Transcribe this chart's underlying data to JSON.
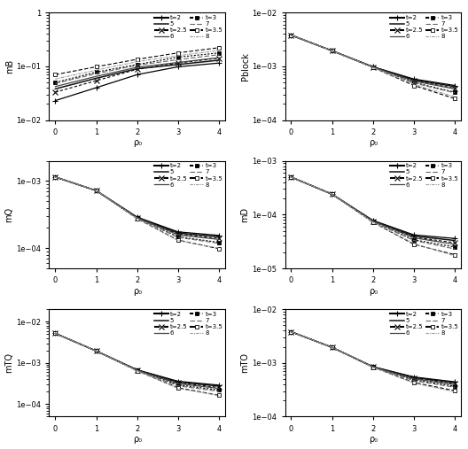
{
  "xlabel": "ρ₀",
  "x_values": [
    0,
    1,
    2,
    3,
    4
  ],
  "subplots": [
    {
      "ylabel": "mB",
      "ylim": [
        0.01,
        1.0
      ],
      "yticks": [
        0.01,
        0.1,
        1.0
      ],
      "series": [
        {
          "y": [
            0.023,
            0.04,
            0.07,
            0.098,
            0.115
          ],
          "ls": "solid",
          "marker": "+",
          "mfc": "k"
        },
        {
          "y": [
            0.033,
            0.054,
            0.088,
            0.115,
            0.142
          ],
          "ls": "dot1",
          "marker": "x",
          "mfc": "k"
        },
        {
          "y": [
            0.05,
            0.078,
            0.108,
            0.148,
            0.178
          ],
          "ls": "dot2",
          "marker": "s_fill",
          "mfc": "k"
        },
        {
          "y": [
            0.07,
            0.098,
            0.135,
            0.178,
            0.222
          ],
          "ls": "dot3",
          "marker": "s_open",
          "mfc": "w"
        },
        {
          "y": [
            0.038,
            0.06,
            0.09,
            0.108,
            0.13
          ],
          "ls": "solid",
          "marker": "none",
          "mfc": "k"
        },
        {
          "y": [
            0.042,
            0.065,
            0.096,
            0.118,
            0.145
          ],
          "ls": "solid",
          "marker": "none",
          "mfc": "k"
        },
        {
          "y": [
            0.048,
            0.073,
            0.105,
            0.133,
            0.165
          ],
          "ls": "dash1",
          "marker": "none",
          "mfc": "k"
        },
        {
          "y": [
            0.058,
            0.085,
            0.122,
            0.158,
            0.198
          ],
          "ls": "dash2",
          "marker": "none",
          "mfc": "k"
        }
      ]
    },
    {
      "ylabel": "Pblock",
      "ylim": [
        0.0001,
        0.01
      ],
      "yticks": [
        0.0001,
        0.001,
        0.01
      ],
      "series": [
        {
          "y": [
            0.0038,
            0.00195,
            0.00098,
            0.00058,
            0.00044
          ],
          "ls": "solid",
          "marker": "+",
          "mfc": "k"
        },
        {
          "y": [
            0.0038,
            0.00195,
            0.00097,
            0.00054,
            0.00039
          ],
          "ls": "dot1",
          "marker": "x",
          "mfc": "k"
        },
        {
          "y": [
            0.0038,
            0.00195,
            0.00096,
            0.0005,
            0.00033
          ],
          "ls": "dot2",
          "marker": "s_fill",
          "mfc": "k"
        },
        {
          "y": [
            0.0038,
            0.00195,
            0.00095,
            0.00044,
            0.00025
          ],
          "ls": "dot3",
          "marker": "s_open",
          "mfc": "w"
        },
        {
          "y": [
            0.0038,
            0.00195,
            0.00097,
            0.00056,
            0.00042
          ],
          "ls": "solid",
          "marker": "none",
          "mfc": "k"
        },
        {
          "y": [
            0.0038,
            0.00195,
            0.00097,
            0.00053,
            0.00038
          ],
          "ls": "solid",
          "marker": "none",
          "mfc": "k"
        },
        {
          "y": [
            0.0038,
            0.00195,
            0.00096,
            0.00049,
            0.00032
          ],
          "ls": "dash1",
          "marker": "none",
          "mfc": "k"
        },
        {
          "y": [
            0.0038,
            0.00195,
            0.00095,
            0.00046,
            0.00027
          ],
          "ls": "dash2",
          "marker": "none",
          "mfc": "k"
        }
      ]
    },
    {
      "ylabel": "mQ",
      "ylim": [
        5e-05,
        0.002
      ],
      "yticks": [
        0.0001,
        0.001
      ],
      "series": [
        {
          "y": [
            0.00115,
            0.00072,
            0.00029,
            0.000175,
            0.000155
          ],
          "ls": "solid",
          "marker": "+",
          "mfc": "k"
        },
        {
          "y": [
            0.00115,
            0.00072,
            0.000285,
            0.000162,
            0.00014
          ],
          "ls": "dot1",
          "marker": "x",
          "mfc": "k"
        },
        {
          "y": [
            0.00115,
            0.00072,
            0.00028,
            0.000148,
            0.000122
          ],
          "ls": "dot2",
          "marker": "s_fill",
          "mfc": "k"
        },
        {
          "y": [
            0.00115,
            0.00072,
            0.000275,
            0.000132,
            9.8e-05
          ],
          "ls": "dot3",
          "marker": "s_open",
          "mfc": "w"
        },
        {
          "y": [
            0.00115,
            0.00072,
            0.000288,
            0.000168,
            0.000148
          ],
          "ls": "solid",
          "marker": "none",
          "mfc": "k"
        },
        {
          "y": [
            0.00115,
            0.00072,
            0.000284,
            0.000158,
            0.000135
          ],
          "ls": "solid",
          "marker": "none",
          "mfc": "k"
        },
        {
          "y": [
            0.00115,
            0.00072,
            0.00028,
            0.000145,
            0.000118
          ],
          "ls": "dash1",
          "marker": "none",
          "mfc": "k"
        },
        {
          "y": [
            0.00115,
            0.00072,
            0.000276,
            0.00013,
            0.0001
          ],
          "ls": "dash2",
          "marker": "none",
          "mfc": "k"
        }
      ]
    },
    {
      "ylabel": "mD",
      "ylim": [
        1e-05,
        0.001
      ],
      "yticks": [
        1e-05,
        0.0001,
        0.001
      ],
      "series": [
        {
          "y": [
            0.0005,
            0.00024,
            7.8e-05,
            4.2e-05,
            3.6e-05
          ],
          "ls": "solid",
          "marker": "+",
          "mfc": "k"
        },
        {
          "y": [
            0.0005,
            0.00024,
            7.6e-05,
            3.8e-05,
            3e-05
          ],
          "ls": "dot1",
          "marker": "x",
          "mfc": "k"
        },
        {
          "y": [
            0.0005,
            0.00024,
            7.4e-05,
            3.4e-05,
            2.5e-05
          ],
          "ls": "dot2",
          "marker": "s_fill",
          "mfc": "k"
        },
        {
          "y": [
            0.0005,
            0.00024,
            7.2e-05,
            2.8e-05,
            1.8e-05
          ],
          "ls": "dot3",
          "marker": "s_open",
          "mfc": "w"
        },
        {
          "y": [
            0.0005,
            0.00024,
            7.7e-05,
            4e-05,
            3.3e-05
          ],
          "ls": "solid",
          "marker": "none",
          "mfc": "k"
        },
        {
          "y": [
            0.0005,
            0.00024,
            7.6e-05,
            3.7e-05,
            2.8e-05
          ],
          "ls": "solid",
          "marker": "none",
          "mfc": "k"
        },
        {
          "y": [
            0.0005,
            0.00024,
            7.4e-05,
            3.3e-05,
            2.3e-05
          ],
          "ls": "dash1",
          "marker": "none",
          "mfc": "k"
        },
        {
          "y": [
            0.0005,
            0.00024,
            7.2e-05,
            2.9e-05,
            1.7e-05
          ],
          "ls": "dash2",
          "marker": "none",
          "mfc": "k"
        }
      ]
    },
    {
      "ylabel": "mTQ",
      "ylim": [
        5e-05,
        0.02
      ],
      "yticks": [
        0.0001,
        0.001
      ],
      "series": [
        {
          "y": [
            0.0052,
            0.00195,
            0.00068,
            0.00036,
            0.00029
          ],
          "ls": "solid",
          "marker": "+",
          "mfc": "k"
        },
        {
          "y": [
            0.0052,
            0.00195,
            0.00067,
            0.00033,
            0.000255
          ],
          "ls": "dot1",
          "marker": "x",
          "mfc": "k"
        },
        {
          "y": [
            0.0052,
            0.00195,
            0.00066,
            0.000295,
            0.00022
          ],
          "ls": "dot2",
          "marker": "s_fill",
          "mfc": "k"
        },
        {
          "y": [
            0.0052,
            0.00195,
            0.000645,
            0.00025,
            0.000165
          ],
          "ls": "dot3",
          "marker": "s_open",
          "mfc": "w"
        },
        {
          "y": [
            0.0052,
            0.00195,
            0.000675,
            0.000345,
            0.000275
          ],
          "ls": "solid",
          "marker": "none",
          "mfc": "k"
        },
        {
          "y": [
            0.0052,
            0.00195,
            0.000665,
            0.000315,
            0.000242
          ],
          "ls": "solid",
          "marker": "none",
          "mfc": "k"
        },
        {
          "y": [
            0.0052,
            0.00195,
            0.000655,
            0.000278,
            0.000205
          ],
          "ls": "dash1",
          "marker": "none",
          "mfc": "k"
        },
        {
          "y": [
            0.0052,
            0.00195,
            0.000645,
            0.000242,
            0.000162
          ],
          "ls": "dash2",
          "marker": "none",
          "mfc": "k"
        }
      ]
    },
    {
      "ylabel": "mTO",
      "ylim": [
        0.0001,
        0.01
      ],
      "yticks": [
        0.0001,
        0.001,
        0.01
      ],
      "series": [
        {
          "y": [
            0.0038,
            0.00195,
            0.00085,
            0.000548,
            0.000445
          ],
          "ls": "solid",
          "marker": "+",
          "mfc": "k"
        },
        {
          "y": [
            0.0038,
            0.00195,
            0.000845,
            0.000518,
            0.000408
          ],
          "ls": "dot1",
          "marker": "x",
          "mfc": "k"
        },
        {
          "y": [
            0.0038,
            0.00195,
            0.00084,
            0.000482,
            0.000368
          ],
          "ls": "dot2",
          "marker": "s_fill",
          "mfc": "k"
        },
        {
          "y": [
            0.0038,
            0.00195,
            0.000835,
            0.000432,
            0.000305
          ],
          "ls": "dot3",
          "marker": "s_open",
          "mfc": "w"
        },
        {
          "y": [
            0.0038,
            0.00195,
            0.000848,
            0.000535,
            0.00043
          ],
          "ls": "solid",
          "marker": "none",
          "mfc": "k"
        },
        {
          "y": [
            0.0038,
            0.00195,
            0.000843,
            0.000505,
            0.000395
          ],
          "ls": "solid",
          "marker": "none",
          "mfc": "k"
        },
        {
          "y": [
            0.0038,
            0.00195,
            0.000838,
            0.000468,
            0.000352
          ],
          "ls": "dash1",
          "marker": "none",
          "mfc": "k"
        },
        {
          "y": [
            0.0038,
            0.00195,
            0.000835,
            0.00042,
            0.00029
          ],
          "ls": "dash2",
          "marker": "none",
          "mfc": "k"
        }
      ]
    }
  ],
  "legend_left": [
    "t=2",
    "t=2.5",
    "t=3",
    "t=3.5"
  ],
  "legend_right": [
    "5",
    "6",
    "7",
    "8"
  ],
  "line_styles": {
    "solid": "-",
    "dot1": [
      3,
      2
    ],
    "dot2": [
      2,
      1.5
    ],
    "dot3": [
      4,
      2
    ],
    "dash1": [
      5,
      2
    ],
    "dash2": [
      3,
      1,
      1,
      1
    ]
  },
  "colors": {
    "marker_lines": "k",
    "solid1": "#111111",
    "solid2": "#444444",
    "dash1": "#666666",
    "dash2": "#999999"
  }
}
